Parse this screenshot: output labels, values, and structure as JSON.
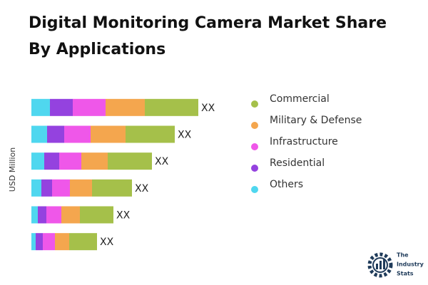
{
  "chart_data": {
    "type": "stacked-bar-horizontal",
    "title": "Digital Monitoring Camera Market Share By Applications",
    "y_label": "USD Million",
    "categories": [
      null,
      null,
      null,
      null,
      null,
      null
    ],
    "series": [
      {
        "name": "Commercial",
        "color": "#a5c04a",
        "values": [
          75,
          69,
          62,
          56,
          47,
          39
        ]
      },
      {
        "name": "Military & Defense",
        "color": "#f4a64e",
        "values": [
          55,
          49,
          37,
          31,
          26,
          20
        ]
      },
      {
        "name": "Infrastructure",
        "color": "#ef57e9",
        "values": [
          46,
          37,
          31,
          25,
          21,
          17
        ]
      },
      {
        "name": "Residential",
        "color": "#9442df",
        "values": [
          32,
          24,
          21,
          15,
          12,
          10
        ]
      },
      {
        "name": "Others",
        "color": "#4fd7ef",
        "values": [
          26,
          22,
          18,
          14,
          9,
          6
        ]
      }
    ],
    "total_labels": [
      "XX",
      "XX",
      "XX",
      "XX",
      "XX",
      "XX"
    ],
    "xlim": [
      0,
      240
    ],
    "legend": "right"
  },
  "logo_text": [
    "The",
    "Industry",
    "Stats"
  ]
}
